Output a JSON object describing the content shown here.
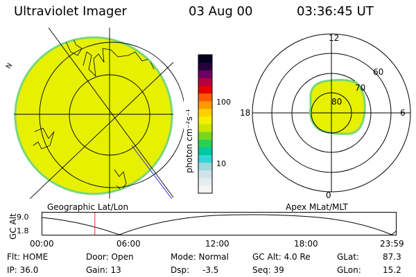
{
  "header": {
    "title": "Ultraviolet Imager",
    "date": "03 Aug 00",
    "time": "03:36:45 UT"
  },
  "geo_panel": {
    "label": "Geographic Lat/Lon"
  },
  "mag_panel": {
    "label": "Apex MLat/MLT",
    "mlt_labels": {
      "top": "12",
      "left": "18",
      "right": "6",
      "bottom": "0"
    },
    "lat_labels": [
      "80",
      "70",
      "60"
    ]
  },
  "colorbar": {
    "unit_label": "photon cm⁻²s⁻¹",
    "ticks": [
      "100",
      "10"
    ],
    "colors": [
      "#f5f5f5",
      "#e6eef0",
      "#cfe3e8",
      "#9fd8df",
      "#33d6d6",
      "#00c8a0",
      "#2ccf55",
      "#7ad61e",
      "#c8e600",
      "#f0f000",
      "#ffd000",
      "#ff9a00",
      "#ff5a00",
      "#e60000",
      "#b4003c",
      "#6e0064",
      "#28003c",
      "#000020"
    ]
  },
  "timeline": {
    "axis_label": "GC Alt",
    "y_ticks": [
      "9.0",
      "1.8"
    ],
    "x_ticks": [
      "00:00",
      "06:00",
      "12:00",
      "18:00",
      "23:59"
    ],
    "current_time_hours": 3.6
  },
  "status": {
    "filter": "Flt: HOME",
    "door": "Door: Open",
    "mode": "Mode: Normal",
    "gc_alt": "GC Alt: 4.0 Re",
    "glat_label": "GLat:",
    "glat_value": "87.3",
    "ip": "IP: 36.0",
    "gain": "Gain: 13",
    "dsp_label": "Dsp:",
    "dsp_value": "-3.5",
    "seq": "Seq: 39",
    "glon_label": "GLon:",
    "glon_value": "15.2"
  },
  "colors": {
    "disk_fill": "#e6f000",
    "disk_edge": "#7ad67a",
    "orbit_marker": "#e03030"
  }
}
